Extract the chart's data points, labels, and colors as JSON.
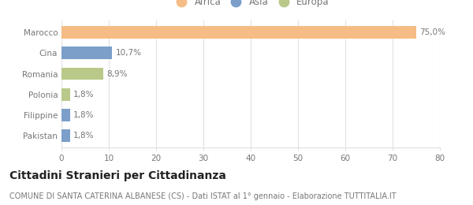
{
  "categories": [
    "Marocco",
    "Cina",
    "Romania",
    "Polonia",
    "Filippine",
    "Pakistan"
  ],
  "values": [
    75.0,
    10.7,
    8.9,
    1.8,
    1.8,
    1.8
  ],
  "labels": [
    "75,0%",
    "10,7%",
    "8,9%",
    "1,8%",
    "1,8%",
    "1,8%"
  ],
  "colors": [
    "#f5bc85",
    "#7b9fc9",
    "#b8c98a",
    "#b8c98a",
    "#7b9fc9",
    "#7b9fc9"
  ],
  "legend_items": [
    {
      "label": "Africa",
      "color": "#f5bc85"
    },
    {
      "label": "Asia",
      "color": "#7b9fc9"
    },
    {
      "label": "Europa",
      "color": "#b8c98a"
    }
  ],
  "xlim": [
    0,
    80
  ],
  "xticks": [
    0,
    10,
    20,
    30,
    40,
    50,
    60,
    70,
    80
  ],
  "title": "Cittadini Stranieri per Cittadinanza",
  "subtitle": "COMUNE DI SANTA CATERINA ALBANESE (CS) - Dati ISTAT al 1° gennaio - Elaborazione TUTTITALIA.IT",
  "title_fontsize": 10,
  "subtitle_fontsize": 7,
  "label_fontsize": 7.5,
  "tick_fontsize": 7.5,
  "legend_fontsize": 8.5,
  "bar_height": 0.6,
  "background_color": "#ffffff",
  "grid_color": "#e0e0e0",
  "text_color": "#777777",
  "title_color": "#222222"
}
